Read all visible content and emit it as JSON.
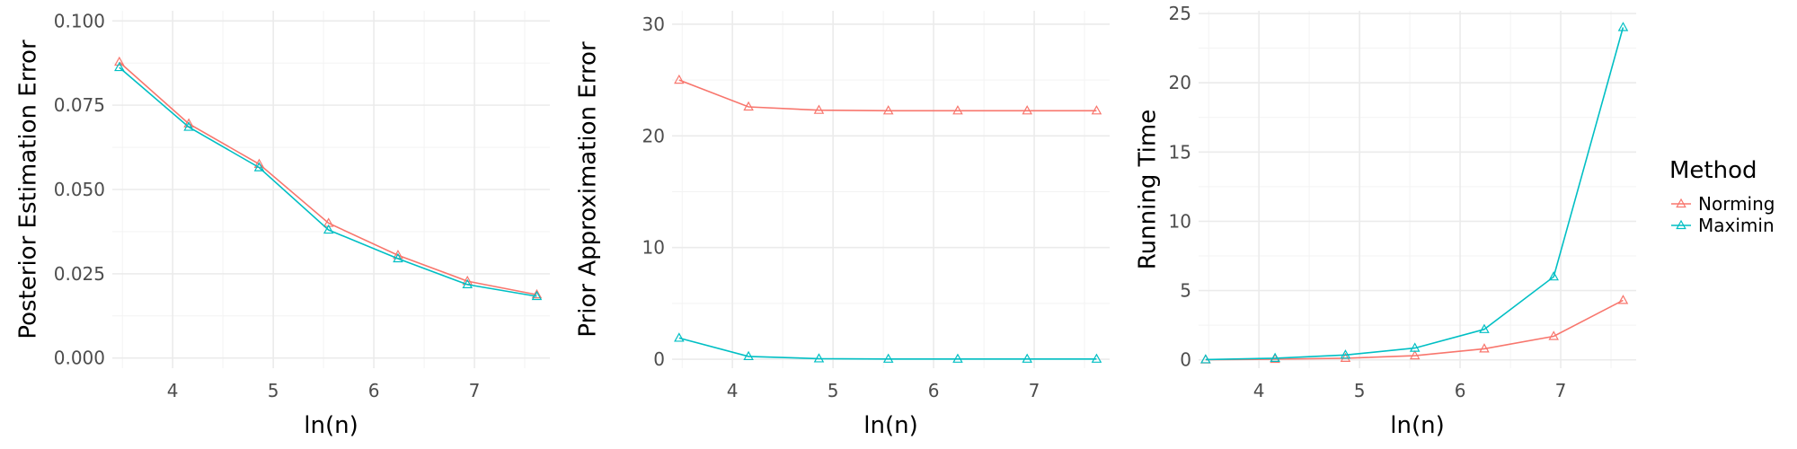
{
  "legend": {
    "title": "Method",
    "entries": [
      {
        "label": "Norming",
        "color": "#F8766D"
      },
      {
        "label": "Maximin",
        "color": "#00BFC4"
      }
    ]
  },
  "chart_data": [
    {
      "type": "line",
      "marker": "open-triangle",
      "xlabel": "ln(n)",
      "ylabel": "Posterior Estimation Error",
      "xlim": [
        3.4,
        7.75
      ],
      "ylim": [
        -0.003,
        0.103
      ],
      "x_ticks": [
        4,
        5,
        6,
        7
      ],
      "y_ticks": [
        0.0,
        0.025,
        0.05,
        0.075,
        0.1
      ],
      "y_tick_labels": [
        "0.000",
        "0.025",
        "0.050",
        "0.075",
        "0.100"
      ],
      "x": [
        3.47,
        4.16,
        4.86,
        5.55,
        6.24,
        6.93,
        7.62
      ],
      "series": [
        {
          "name": "Norming",
          "color": "#F8766D",
          "values": [
            0.0878,
            0.0695,
            0.0575,
            0.04,
            0.0305,
            0.0228,
            0.0188
          ]
        },
        {
          "name": "Maximin",
          "color": "#00BFC4",
          "values": [
            0.0862,
            0.0685,
            0.0565,
            0.038,
            0.0295,
            0.0218,
            0.0183
          ]
        }
      ]
    },
    {
      "type": "line",
      "marker": "open-triangle",
      "xlabel": "ln(n)",
      "ylabel": "Prior Approximation Error",
      "xlim": [
        3.4,
        7.75
      ],
      "ylim": [
        -0.8,
        31.2
      ],
      "x_ticks": [
        4,
        5,
        6,
        7
      ],
      "y_ticks": [
        0,
        10,
        20,
        30
      ],
      "y_tick_labels": [
        "0",
        "10",
        "20",
        "30"
      ],
      "x": [
        3.47,
        4.16,
        4.86,
        5.55,
        6.24,
        6.93,
        7.62
      ],
      "series": [
        {
          "name": "Norming",
          "color": "#F8766D",
          "values": [
            25.0,
            22.6,
            22.3,
            22.25,
            22.25,
            22.25,
            22.25
          ]
        },
        {
          "name": "Maximin",
          "color": "#00BFC4",
          "values": [
            1.9,
            0.25,
            0.05,
            0.02,
            0.02,
            0.02,
            0.02
          ]
        }
      ]
    },
    {
      "type": "line",
      "marker": "open-triangle",
      "xlabel": "ln(n)",
      "ylabel": "Running Time",
      "xlim": [
        3.4,
        7.75
      ],
      "ylim": [
        -0.6,
        25.2
      ],
      "x_ticks": [
        4,
        5,
        6,
        7
      ],
      "y_ticks": [
        0,
        5,
        10,
        15,
        20,
        25
      ],
      "y_tick_labels": [
        "0",
        "5",
        "10",
        "15",
        "20",
        "25"
      ],
      "x": [
        3.47,
        4.16,
        4.86,
        5.55,
        6.24,
        6.93,
        7.62
      ],
      "series": [
        {
          "name": "Norming",
          "color": "#F8766D",
          "values": [
            0.01,
            0.05,
            0.12,
            0.3,
            0.8,
            1.7,
            4.3
          ]
        },
        {
          "name": "Maximin",
          "color": "#00BFC4",
          "values": [
            0.02,
            0.12,
            0.35,
            0.85,
            2.2,
            6.0,
            24.0
          ]
        }
      ]
    }
  ]
}
